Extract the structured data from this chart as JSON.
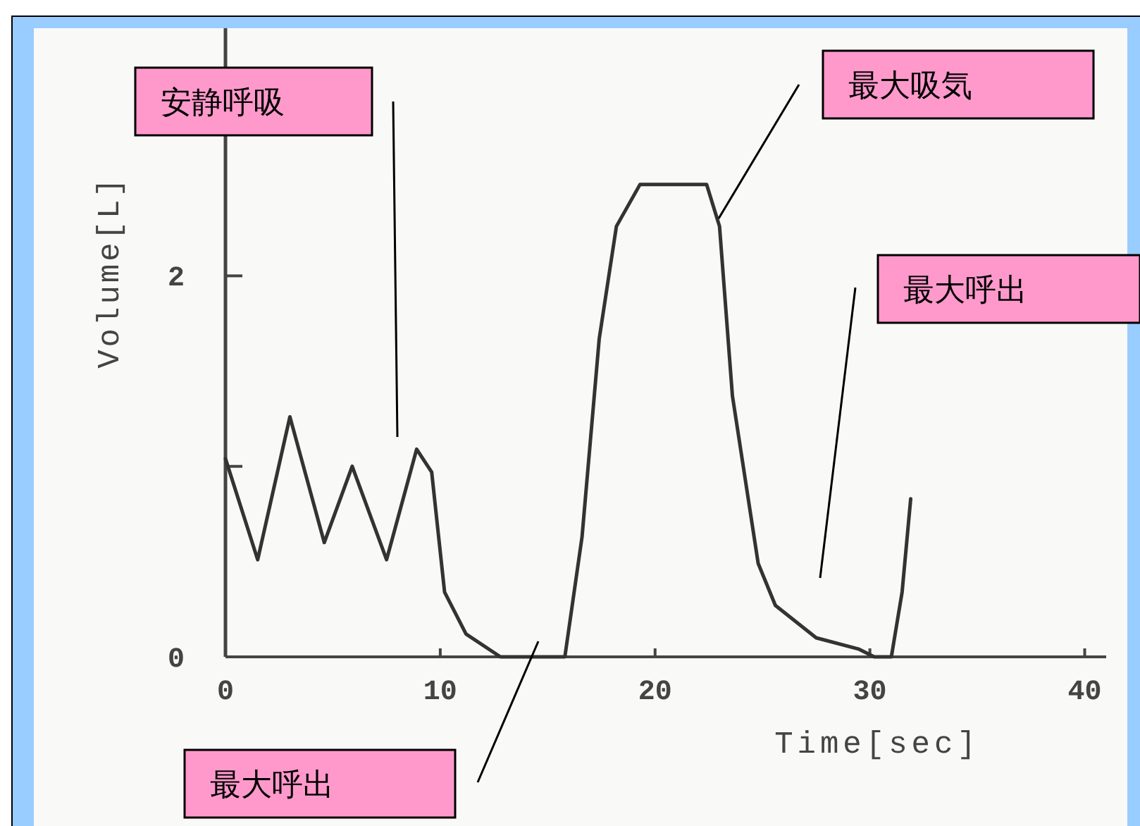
{
  "chart_data": {
    "type": "line",
    "xlabel": "Time[sec]",
    "ylabel": "Volume[L]",
    "color": "#333333",
    "xlim": [
      0,
      41
    ],
    "ylim": [
      0,
      3.3
    ],
    "xticks": [
      0,
      10,
      20,
      30,
      40
    ],
    "yticks": [
      0,
      {
        "value": 1,
        "label": null
      },
      2
    ],
    "x": [
      0,
      1.5,
      3.0,
      4.6,
      5.9,
      7.5,
      8.9,
      9.6,
      10.2,
      11.2,
      12.8,
      15.8,
      16.6,
      17.4,
      18.2,
      19.3,
      22.4,
      23.0,
      23.6,
      24.8,
      25.6,
      27.5,
      29.5,
      30.2,
      31.0,
      31.5,
      31.9
    ],
    "values": [
      1.04,
      0.51,
      1.26,
      0.6,
      1.0,
      0.51,
      1.09,
      0.97,
      0.34,
      0.12,
      0,
      0,
      0.63,
      1.67,
      2.26,
      2.48,
      2.48,
      2.26,
      1.37,
      0.49,
      0.27,
      0.1,
      0.04,
      0,
      0,
      0.34,
      0.83
    ],
    "annotations": [
      "安静呼吸",
      "最大吸気",
      "最大呼出",
      "最大呼出"
    ]
  }
}
